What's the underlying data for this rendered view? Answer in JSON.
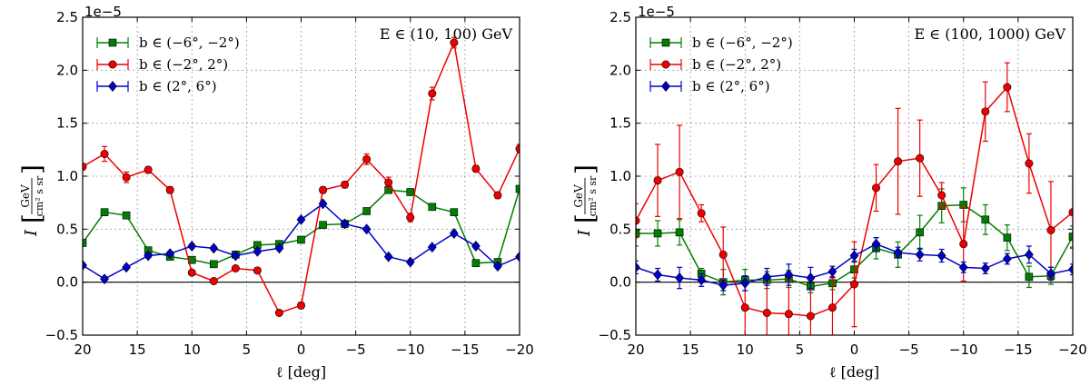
{
  "chart_data": [
    {
      "type": "line",
      "xlabel": "ℓ [deg]",
      "ylabel": "I",
      "ylabel_unit_num": "GeV",
      "ylabel_unit_den": "cm² s sr",
      "exponent_label": "1e−5",
      "annotation": "E ∈ (10,  100) GeV",
      "xlim": [
        20,
        -20
      ],
      "ylim": [
        -0.5,
        2.5
      ],
      "xticks": [
        20,
        15,
        10,
        5,
        0,
        -5,
        -10,
        -15,
        -20
      ],
      "xtick_labels": [
        "20",
        "15",
        "10",
        "5",
        "0",
        "−5",
        "−10",
        "−15",
        "−20"
      ],
      "yticks": [
        -0.5,
        0.0,
        0.5,
        1.0,
        1.5,
        2.0,
        2.5
      ],
      "ytick_labels": [
        "−0.5",
        "0.0",
        "0.5",
        "1.0",
        "1.5",
        "2.0",
        "2.5"
      ],
      "legend_position": "top-left",
      "x": [
        20,
        18,
        16,
        14,
        12,
        10,
        8,
        6,
        4,
        2,
        0,
        -2,
        -4,
        -6,
        -8,
        -10,
        -12,
        -14,
        -16,
        -18,
        -20
      ],
      "series": [
        {
          "name": "b ∈ (−6°,  −2°)",
          "color": "#007f00",
          "marker": "square",
          "values": [
            0.37,
            0.66,
            0.63,
            0.3,
            0.24,
            0.21,
            0.17,
            0.26,
            0.35,
            0.36,
            0.4,
            0.54,
            0.55,
            0.67,
            0.87,
            0.85,
            0.71,
            0.66,
            0.18,
            0.19,
            0.88
          ],
          "errors": [
            0.02,
            0.02,
            0.02,
            0.02,
            0.02,
            0.02,
            0.02,
            0.02,
            0.02,
            0.02,
            0.02,
            0.02,
            0.02,
            0.03,
            0.03,
            0.03,
            0.03,
            0.02,
            0.02,
            0.02,
            0.03
          ]
        },
        {
          "name": "b ∈ (−2°,  2°)",
          "color": "#ee0000",
          "marker": "circle",
          "values": [
            1.09,
            1.21,
            0.99,
            1.06,
            0.87,
            0.09,
            0.01,
            0.13,
            0.11,
            -0.29,
            -0.22,
            0.87,
            0.92,
            1.16,
            0.94,
            0.61,
            1.78,
            2.26,
            1.07,
            0.82,
            1.26
          ],
          "errors": [
            0.03,
            0.07,
            0.05,
            0.03,
            0.03,
            0.02,
            0.02,
            0.02,
            0.02,
            0.02,
            0.03,
            0.03,
            0.03,
            0.05,
            0.05,
            0.04,
            0.06,
            0.05,
            0.03,
            0.03,
            0.04
          ]
        },
        {
          "name": "b ∈ (2°,  6°)",
          "color": "#0000cc",
          "marker": "diamond",
          "values": [
            0.16,
            0.03,
            0.14,
            0.25,
            0.27,
            0.34,
            0.32,
            0.25,
            0.29,
            0.32,
            0.59,
            0.74,
            0.55,
            0.5,
            0.24,
            0.19,
            0.33,
            0.46,
            0.34,
            0.15,
            0.24
          ],
          "errors": [
            0.02,
            0.02,
            0.02,
            0.02,
            0.02,
            0.02,
            0.02,
            0.02,
            0.02,
            0.02,
            0.02,
            0.02,
            0.02,
            0.02,
            0.02,
            0.02,
            0.02,
            0.02,
            0.02,
            0.02,
            0.02
          ]
        }
      ]
    },
    {
      "type": "line",
      "xlabel": "ℓ [deg]",
      "ylabel": "I",
      "ylabel_unit_num": "GeV",
      "ylabel_unit_den": "cm² s sr",
      "exponent_label": "1e−5",
      "annotation": "E ∈ (100,  1000) GeV",
      "xlim": [
        20,
        -20
      ],
      "ylim": [
        -0.5,
        2.5
      ],
      "xticks": [
        20,
        15,
        10,
        5,
        0,
        -5,
        -10,
        -15,
        -20
      ],
      "xtick_labels": [
        "20",
        "15",
        "10",
        "5",
        "0",
        "−5",
        "−10",
        "−15",
        "−20"
      ],
      "yticks": [
        -0.5,
        0.0,
        0.5,
        1.0,
        1.5,
        2.0,
        2.5
      ],
      "ytick_labels": [
        "−0.5",
        "0.0",
        "0.5",
        "1.0",
        "1.5",
        "2.0",
        "2.5"
      ],
      "legend_position": "top-left",
      "x": [
        20,
        18,
        16,
        14,
        12,
        10,
        8,
        6,
        4,
        2,
        0,
        -2,
        -4,
        -6,
        -8,
        -10,
        -12,
        -14,
        -16,
        -18,
        -20
      ],
      "series": [
        {
          "name": "b ∈ (−6°,  −2°)",
          "color": "#007f00",
          "marker": "square",
          "values": [
            0.46,
            0.46,
            0.47,
            0.08,
            0.0,
            0.02,
            0.02,
            0.03,
            -0.04,
            -0.01,
            0.12,
            0.32,
            0.26,
            0.47,
            0.72,
            0.73,
            0.59,
            0.42,
            0.05,
            0.06,
            0.43
          ],
          "errors": [
            0.12,
            0.12,
            0.12,
            0.05,
            0.12,
            0.1,
            0.08,
            0.08,
            0.06,
            0.06,
            0.08,
            0.1,
            0.12,
            0.16,
            0.16,
            0.16,
            0.14,
            0.12,
            0.1,
            0.08,
            0.1
          ]
        },
        {
          "name": "b ∈ (−2°,  2°)",
          "color": "#ee0000",
          "marker": "circle",
          "values": [
            0.58,
            0.96,
            1.04,
            0.65,
            0.26,
            -0.24,
            -0.29,
            -0.3,
            -0.32,
            -0.24,
            -0.02,
            0.89,
            1.14,
            1.17,
            0.82,
            0.36,
            1.61,
            1.84,
            1.12,
            0.49,
            0.66
          ],
          "errors": [
            0.16,
            0.34,
            0.44,
            0.08,
            0.26,
            0.3,
            0.34,
            0.32,
            0.34,
            0.28,
            0.4,
            0.22,
            0.5,
            0.36,
            0.12,
            0.35,
            0.28,
            0.23,
            0.28,
            0.46,
            0.34
          ]
        },
        {
          "name": "b ∈ (2°,  6°)",
          "color": "#0000cc",
          "marker": "diamond",
          "values": [
            0.14,
            0.07,
            0.04,
            0.02,
            -0.03,
            -0.01,
            0.05,
            0.07,
            0.04,
            0.1,
            0.25,
            0.36,
            0.28,
            0.26,
            0.25,
            0.14,
            0.13,
            0.22,
            0.26,
            0.08,
            0.12
          ],
          "errors": [
            0.06,
            0.06,
            0.1,
            0.06,
            0.05,
            0.07,
            0.08,
            0.1,
            0.1,
            0.05,
            0.06,
            0.06,
            0.05,
            0.06,
            0.06,
            0.05,
            0.05,
            0.05,
            0.08,
            0.06,
            0.05
          ]
        }
      ]
    }
  ]
}
